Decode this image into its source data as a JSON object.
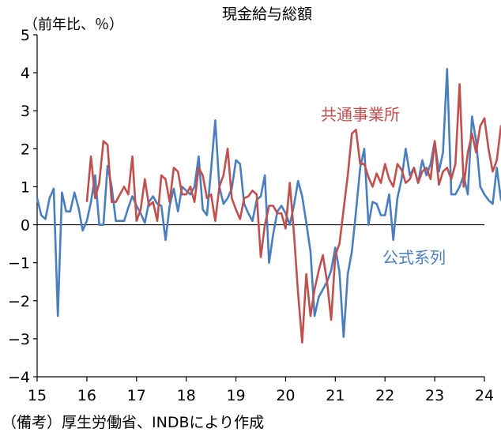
{
  "chart_data": {
    "type": "line",
    "title": "現金給与総額",
    "ylabel": "（前年比、％）",
    "ylim": [
      -4,
      5
    ],
    "y_ticks": [
      "5",
      "4",
      "3",
      "2",
      "1",
      "0",
      "−1",
      "−2",
      "−3",
      "−4"
    ],
    "y_tick_values": [
      5,
      4,
      3,
      2,
      1,
      0,
      -1,
      -2,
      -3,
      -4
    ],
    "x_ticks": [
      "15",
      "16",
      "17",
      "18",
      "19",
      "20",
      "21",
      "22",
      "23",
      "24"
    ],
    "x_tick_values": [
      2015,
      2016,
      2017,
      2018,
      2019,
      2020,
      2021,
      2022,
      2023,
      2024
    ],
    "xlim": [
      2015,
      2024
    ],
    "grid": false,
    "legend": "inline labels",
    "series": [
      {
        "name": "公式系列",
        "color": "#4a7ebf",
        "x_start": 2015.0,
        "step": 0.0833333,
        "values": [
          0.7,
          0.25,
          0.15,
          0.7,
          0.95,
          -2.4,
          0.85,
          0.35,
          0.35,
          0.85,
          0.45,
          -0.15,
          0.1,
          0.6,
          1.3,
          0.0,
          0.0,
          1.55,
          1.0,
          0.1,
          0.1,
          0.1,
          0.45,
          0.75,
          0.5,
          0.3,
          0.05,
          0.6,
          0.75,
          0.55,
          0.5,
          -0.4,
          0.5,
          0.95,
          0.35,
          1.0,
          0.9,
          0.8,
          1.0,
          1.8,
          0.4,
          0.25,
          1.45,
          2.75,
          1.0,
          0.55,
          0.7,
          0.95,
          1.7,
          1.6,
          0.55,
          0.3,
          0.1,
          0.65,
          0.75,
          1.3,
          -1.0,
          -0.25,
          0.35,
          0.5,
          0.3,
          0.0,
          0.5,
          1.15,
          0.75,
          0.05,
          -0.7,
          -2.4,
          -1.9,
          -1.7,
          -1.5,
          -1.2,
          -0.6,
          -1.25,
          -2.95,
          -1.3,
          -0.7,
          0.35,
          1.5,
          2.0,
          0.0,
          0.6,
          0.55,
          0.25,
          0.25,
          0.8,
          -0.4,
          0.7,
          1.2,
          2.0,
          1.3,
          1.5,
          1.1,
          1.7,
          1.3,
          1.6,
          2.2,
          1.4,
          1.9,
          4.1,
          0.8,
          0.8,
          1.0,
          1.3,
          0.8,
          2.85,
          2.2,
          1.0,
          0.8,
          0.65,
          0.55,
          1.5,
          0.65,
          0.75,
          2.0
        ]
      },
      {
        "name": "共通事業所",
        "color": "#c0504d",
        "x_start": 2016.0,
        "step": 0.0833333,
        "values": [
          0.6,
          1.8,
          0.7,
          1.1,
          2.2,
          2.1,
          0.6,
          0.6,
          0.8,
          1.0,
          0.8,
          1.8,
          0.1,
          0.4,
          1.2,
          0.5,
          0.6,
          0.1,
          1.3,
          1.2,
          0.6,
          1.5,
          1.4,
          0.8,
          0.8,
          1.0,
          0.6,
          1.5,
          1.3,
          0.7,
          0.8,
          0.1,
          1.0,
          1.3,
          2.0,
          0.7,
          0.4,
          0.15,
          0.7,
          0.75,
          0.9,
          0.8,
          -0.85,
          0.0,
          0.5,
          0.5,
          0.3,
          0.3,
          -0.1,
          1.1,
          -0.2,
          -1.8,
          -3.1,
          -1.3,
          -2.4,
          -1.7,
          -1.2,
          -0.8,
          -1.5,
          -2.5,
          -0.8,
          -0.5,
          0.4,
          1.3,
          2.4,
          2.5,
          1.6,
          1.6,
          1.25,
          1.0,
          1.35,
          1.1,
          1.6,
          1.2,
          1.0,
          1.6,
          1.45,
          1.1,
          1.2,
          1.5,
          1.1,
          1.4,
          1.5,
          1.2,
          2.2,
          1.05,
          1.4,
          1.5,
          1.2,
          1.6,
          3.7,
          1.0,
          1.9,
          2.4,
          1.9,
          2.6,
          2.8,
          2.0,
          1.4,
          1.7,
          2.6,
          2.0,
          2.0,
          2.0
        ]
      }
    ],
    "annotations": [
      {
        "text": "共通事業所",
        "series": "共通事業所"
      },
      {
        "text": "公式系列",
        "series": "公式系列"
      }
    ]
  },
  "note": "（備考）厚生労働省、INDBにより作成"
}
